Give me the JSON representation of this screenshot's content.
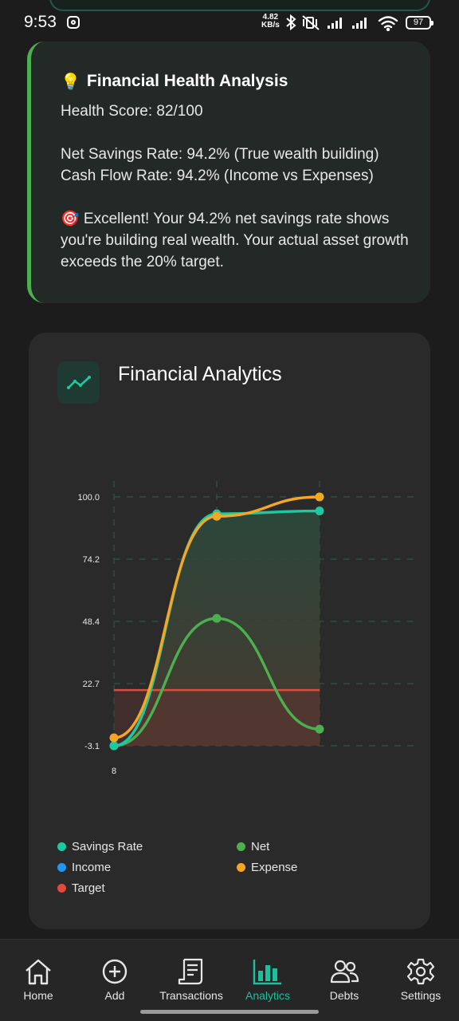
{
  "status_bar": {
    "time": "9:53",
    "speed_value": "4.82",
    "speed_unit": "KB/s",
    "battery": "97",
    "icons": [
      "instagram-icon",
      "bluetooth-icon",
      "vibrate-off-icon",
      "signal-icon",
      "signal-icon",
      "wifi-icon",
      "battery-icon"
    ]
  },
  "health_card": {
    "icon": "lightbulb-emoji",
    "title": "Financial Health Analysis",
    "score": "Health Score: 82/100",
    "net_savings": "Net Savings Rate: 94.2% (True wealth building)",
    "cash_flow": "Cash Flow Rate: 94.2% (Income vs Expenses)",
    "message": "🎯 Excellent! Your 94.2% net savings rate shows you're building real wealth. Your actual asset growth exceeds the 20% target.",
    "accent": "#4caf50"
  },
  "analytics_card": {
    "title": "Financial Analytics",
    "icon": "trend-line-icon"
  },
  "chart_data": {
    "type": "line",
    "x_ticks": [
      "8"
    ],
    "y_ticks": [
      "100.0",
      "74.2",
      "48.4",
      "22.7",
      "-3.1"
    ],
    "ylim": [
      -3.1,
      100.0
    ],
    "grid": true,
    "legend_position": "bottom",
    "series": [
      {
        "name": "Savings Rate",
        "color": "#1dc9a0",
        "values": [
          -3.1,
          93.0,
          94.2
        ]
      },
      {
        "name": "Net",
        "color": "#4caf50",
        "values": [
          -3.1,
          49.7,
          3.8
        ]
      },
      {
        "name": "Income",
        "color": "#2196f3",
        "values": []
      },
      {
        "name": "Expense",
        "color": "#f5a623",
        "values": [
          0.2,
          92.0,
          100.0
        ]
      },
      {
        "name": "Target",
        "color": "#e24a3b",
        "values": [
          20.0,
          20.0,
          20.0
        ]
      }
    ]
  },
  "legend": [
    {
      "name": "Savings Rate",
      "color": "#1dc9a0"
    },
    {
      "name": "Net",
      "color": "#4caf50"
    },
    {
      "name": "Income",
      "color": "#2196f3"
    },
    {
      "name": "Expense",
      "color": "#f5a623"
    },
    {
      "name": "Target",
      "color": "#e24a3b"
    }
  ],
  "nav": {
    "items": [
      {
        "label": "Home",
        "icon": "home-icon"
      },
      {
        "label": "Add",
        "icon": "add-circle-icon"
      },
      {
        "label": "Transactions",
        "icon": "receipt-icon"
      },
      {
        "label": "Analytics",
        "icon": "bar-chart-icon",
        "active": true
      },
      {
        "label": "Debts",
        "icon": "people-icon"
      },
      {
        "label": "Settings",
        "icon": "gear-icon"
      }
    ],
    "active_color": "#1dbf9f"
  }
}
